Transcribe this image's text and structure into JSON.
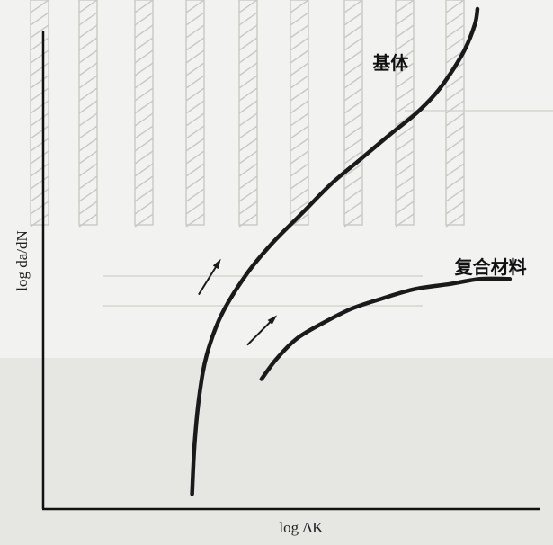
{
  "chart_data": {
    "type": "line",
    "title": "",
    "xlabel": "log ΔK",
    "ylabel": "log da/dN",
    "grid": false,
    "xlim": [
      0,
      1
    ],
    "ylim": [
      0,
      1
    ],
    "series": [
      {
        "name": "基体",
        "points": [
          [
            0.3,
            0.03
          ],
          [
            0.305,
            0.13
          ],
          [
            0.315,
            0.23
          ],
          [
            0.33,
            0.31
          ],
          [
            0.36,
            0.39
          ],
          [
            0.41,
            0.47
          ],
          [
            0.46,
            0.53
          ],
          [
            0.52,
            0.59
          ],
          [
            0.58,
            0.65
          ],
          [
            0.64,
            0.7
          ],
          [
            0.7,
            0.75
          ],
          [
            0.75,
            0.79
          ],
          [
            0.79,
            0.83
          ],
          [
            0.82,
            0.87
          ],
          [
            0.85,
            0.92
          ],
          [
            0.87,
            0.97
          ],
          [
            0.875,
            1.0
          ]
        ]
      },
      {
        "name": "复合材料",
        "points": [
          [
            0.44,
            0.26
          ],
          [
            0.47,
            0.3
          ],
          [
            0.51,
            0.34
          ],
          [
            0.56,
            0.37
          ],
          [
            0.62,
            0.4
          ],
          [
            0.68,
            0.42
          ],
          [
            0.75,
            0.44
          ],
          [
            0.82,
            0.45
          ],
          [
            0.88,
            0.46
          ],
          [
            0.94,
            0.46
          ]
        ]
      }
    ],
    "annotations": [
      {
        "text": "",
        "type": "arrow",
        "series": "基体"
      },
      {
        "text": "",
        "type": "arrow",
        "series": "复合材料"
      }
    ]
  }
}
